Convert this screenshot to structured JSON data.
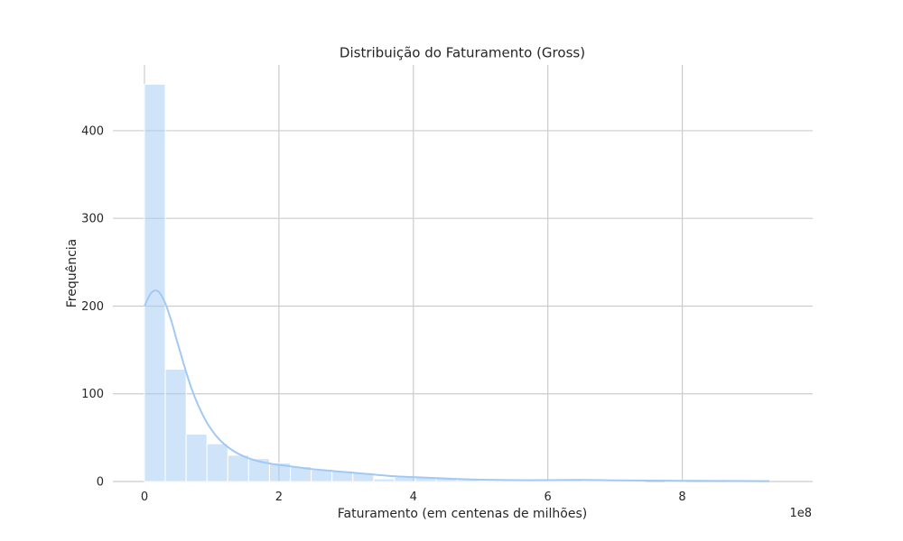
{
  "chart_data": {
    "type": "bar",
    "title": "Distribuição do Faturamento (Gross)",
    "xlabel": "Faturamento (em centenas de milhões)",
    "ylabel": "Frequência",
    "x_offset_label": "1e8",
    "x_scale": 100000000,
    "xlim": [
      -0.47,
      9.94
    ],
    "ylim": [
      0,
      475
    ],
    "x_ticks": [
      0,
      2,
      4,
      6,
      8
    ],
    "x_tick_labels": [
      "0",
      "2",
      "4",
      "6",
      "8"
    ],
    "y_ticks": [
      0,
      100,
      200,
      300,
      400
    ],
    "y_tick_labels": [
      "0",
      "100",
      "200",
      "300",
      "400"
    ],
    "grid": true,
    "bar_color": "#a1c9f4",
    "bar_opacity": 0.5,
    "kde_color": "#a1c9f4",
    "bins": [
      {
        "x0": 0.0,
        "x1": 0.31,
        "count": 453
      },
      {
        "x0": 0.31,
        "x1": 0.62,
        "count": 128
      },
      {
        "x0": 0.62,
        "x1": 0.93,
        "count": 54
      },
      {
        "x0": 0.93,
        "x1": 1.24,
        "count": 43
      },
      {
        "x0": 1.24,
        "x1": 1.55,
        "count": 30
      },
      {
        "x0": 1.55,
        "x1": 1.86,
        "count": 26
      },
      {
        "x0": 1.86,
        "x1": 2.17,
        "count": 21
      },
      {
        "x0": 2.17,
        "x1": 2.48,
        "count": 17
      },
      {
        "x0": 2.48,
        "x1": 2.79,
        "count": 13
      },
      {
        "x0": 2.79,
        "x1": 3.1,
        "count": 12
      },
      {
        "x0": 3.1,
        "x1": 3.41,
        "count": 10
      },
      {
        "x0": 3.41,
        "x1": 3.72,
        "count": 3
      },
      {
        "x0": 3.72,
        "x1": 4.03,
        "count": 5
      },
      {
        "x0": 4.03,
        "x1": 4.34,
        "count": 5
      },
      {
        "x0": 4.34,
        "x1": 4.65,
        "count": 4
      },
      {
        "x0": 4.65,
        "x1": 4.96,
        "count": 2
      },
      {
        "x0": 4.96,
        "x1": 5.27,
        "count": 1
      },
      {
        "x0": 5.27,
        "x1": 5.58,
        "count": 1
      },
      {
        "x0": 5.58,
        "x1": 5.89,
        "count": 1
      },
      {
        "x0": 5.89,
        "x1": 6.2,
        "count": 1
      },
      {
        "x0": 6.2,
        "x1": 6.51,
        "count": 2
      },
      {
        "x0": 6.51,
        "x1": 6.82,
        "count": 1
      },
      {
        "x0": 6.82,
        "x1": 7.13,
        "count": 1
      },
      {
        "x0": 7.13,
        "x1": 7.44,
        "count": 1
      },
      {
        "x0": 7.44,
        "x1": 7.75,
        "count": 0
      },
      {
        "x0": 7.75,
        "x1": 8.06,
        "count": 1
      },
      {
        "x0": 8.06,
        "x1": 8.37,
        "count": 0
      },
      {
        "x0": 8.37,
        "x1": 8.68,
        "count": 0
      },
      {
        "x0": 8.68,
        "x1": 8.99,
        "count": 1
      },
      {
        "x0": 8.99,
        "x1": 9.3,
        "count": 1
      }
    ],
    "kde": {
      "x": [
        0.0,
        0.1,
        0.2,
        0.3,
        0.4,
        0.5,
        0.7,
        0.9,
        1.1,
        1.3,
        1.5,
        1.7,
        1.9,
        2.1,
        2.3,
        2.5,
        2.8,
        3.1,
        3.4,
        3.7,
        4.0,
        4.3,
        4.6,
        5.0,
        5.5,
        6.0,
        6.5,
        7.0,
        7.5,
        8.0,
        8.5,
        9.0,
        9.3
      ],
      "y": [
        200,
        215,
        217,
        205,
        183,
        156,
        106,
        71,
        49,
        36,
        28,
        23,
        20,
        18,
        16,
        14,
        12,
        10,
        8,
        6,
        5,
        4,
        3,
        2,
        1.5,
        1.5,
        1.8,
        1.3,
        1,
        0.8,
        0.7,
        0.5,
        0.4
      ]
    }
  }
}
